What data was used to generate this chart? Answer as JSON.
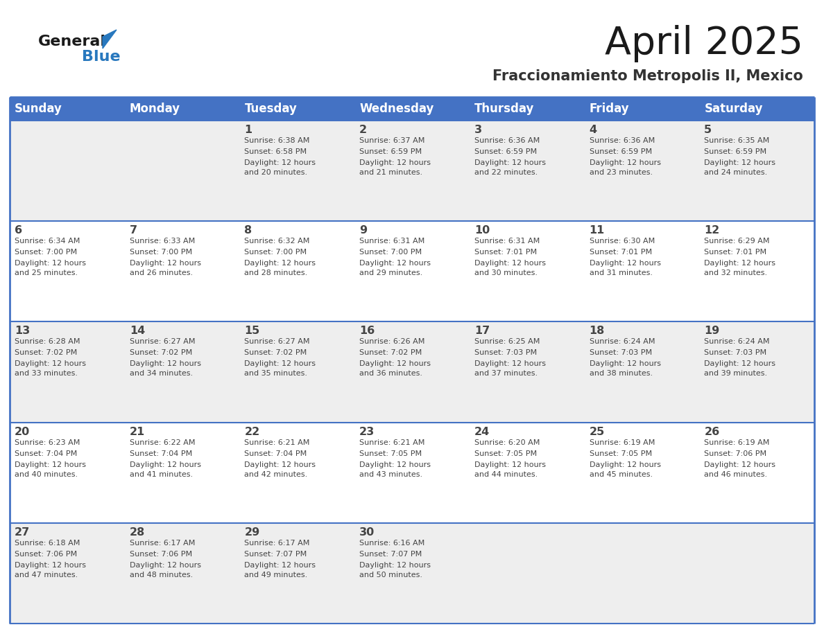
{
  "title": "April 2025",
  "subtitle": "Fraccionamiento Metropolis II, Mexico",
  "days_of_week": [
    "Sunday",
    "Monday",
    "Tuesday",
    "Wednesday",
    "Thursday",
    "Friday",
    "Saturday"
  ],
  "header_bg": "#4472C4",
  "header_text": "#FFFFFF",
  "row_bg_light": "#EEEEEE",
  "row_bg_white": "#FFFFFF",
  "border_color": "#4472C4",
  "cell_text_color": "#444444",
  "title_color": "#1a1a1a",
  "subtitle_color": "#333333",
  "logo_general_color": "#1a1a1a",
  "logo_blue_color": "#2878BE",
  "weeks": [
    [
      {
        "day": "",
        "sunrise": "",
        "sunset": "",
        "daylight": ""
      },
      {
        "day": "",
        "sunrise": "",
        "sunset": "",
        "daylight": ""
      },
      {
        "day": "1",
        "sunrise": "Sunrise: 6:38 AM",
        "sunset": "Sunset: 6:58 PM",
        "daylight": "Daylight: 12 hours\nand 20 minutes."
      },
      {
        "day": "2",
        "sunrise": "Sunrise: 6:37 AM",
        "sunset": "Sunset: 6:59 PM",
        "daylight": "Daylight: 12 hours\nand 21 minutes."
      },
      {
        "day": "3",
        "sunrise": "Sunrise: 6:36 AM",
        "sunset": "Sunset: 6:59 PM",
        "daylight": "Daylight: 12 hours\nand 22 minutes."
      },
      {
        "day": "4",
        "sunrise": "Sunrise: 6:36 AM",
        "sunset": "Sunset: 6:59 PM",
        "daylight": "Daylight: 12 hours\nand 23 minutes."
      },
      {
        "day": "5",
        "sunrise": "Sunrise: 6:35 AM",
        "sunset": "Sunset: 6:59 PM",
        "daylight": "Daylight: 12 hours\nand 24 minutes."
      }
    ],
    [
      {
        "day": "6",
        "sunrise": "Sunrise: 6:34 AM",
        "sunset": "Sunset: 7:00 PM",
        "daylight": "Daylight: 12 hours\nand 25 minutes."
      },
      {
        "day": "7",
        "sunrise": "Sunrise: 6:33 AM",
        "sunset": "Sunset: 7:00 PM",
        "daylight": "Daylight: 12 hours\nand 26 minutes."
      },
      {
        "day": "8",
        "sunrise": "Sunrise: 6:32 AM",
        "sunset": "Sunset: 7:00 PM",
        "daylight": "Daylight: 12 hours\nand 28 minutes."
      },
      {
        "day": "9",
        "sunrise": "Sunrise: 6:31 AM",
        "sunset": "Sunset: 7:00 PM",
        "daylight": "Daylight: 12 hours\nand 29 minutes."
      },
      {
        "day": "10",
        "sunrise": "Sunrise: 6:31 AM",
        "sunset": "Sunset: 7:01 PM",
        "daylight": "Daylight: 12 hours\nand 30 minutes."
      },
      {
        "day": "11",
        "sunrise": "Sunrise: 6:30 AM",
        "sunset": "Sunset: 7:01 PM",
        "daylight": "Daylight: 12 hours\nand 31 minutes."
      },
      {
        "day": "12",
        "sunrise": "Sunrise: 6:29 AM",
        "sunset": "Sunset: 7:01 PM",
        "daylight": "Daylight: 12 hours\nand 32 minutes."
      }
    ],
    [
      {
        "day": "13",
        "sunrise": "Sunrise: 6:28 AM",
        "sunset": "Sunset: 7:02 PM",
        "daylight": "Daylight: 12 hours\nand 33 minutes."
      },
      {
        "day": "14",
        "sunrise": "Sunrise: 6:27 AM",
        "sunset": "Sunset: 7:02 PM",
        "daylight": "Daylight: 12 hours\nand 34 minutes."
      },
      {
        "day": "15",
        "sunrise": "Sunrise: 6:27 AM",
        "sunset": "Sunset: 7:02 PM",
        "daylight": "Daylight: 12 hours\nand 35 minutes."
      },
      {
        "day": "16",
        "sunrise": "Sunrise: 6:26 AM",
        "sunset": "Sunset: 7:02 PM",
        "daylight": "Daylight: 12 hours\nand 36 minutes."
      },
      {
        "day": "17",
        "sunrise": "Sunrise: 6:25 AM",
        "sunset": "Sunset: 7:03 PM",
        "daylight": "Daylight: 12 hours\nand 37 minutes."
      },
      {
        "day": "18",
        "sunrise": "Sunrise: 6:24 AM",
        "sunset": "Sunset: 7:03 PM",
        "daylight": "Daylight: 12 hours\nand 38 minutes."
      },
      {
        "day": "19",
        "sunrise": "Sunrise: 6:24 AM",
        "sunset": "Sunset: 7:03 PM",
        "daylight": "Daylight: 12 hours\nand 39 minutes."
      }
    ],
    [
      {
        "day": "20",
        "sunrise": "Sunrise: 6:23 AM",
        "sunset": "Sunset: 7:04 PM",
        "daylight": "Daylight: 12 hours\nand 40 minutes."
      },
      {
        "day": "21",
        "sunrise": "Sunrise: 6:22 AM",
        "sunset": "Sunset: 7:04 PM",
        "daylight": "Daylight: 12 hours\nand 41 minutes."
      },
      {
        "day": "22",
        "sunrise": "Sunrise: 6:21 AM",
        "sunset": "Sunset: 7:04 PM",
        "daylight": "Daylight: 12 hours\nand 42 minutes."
      },
      {
        "day": "23",
        "sunrise": "Sunrise: 6:21 AM",
        "sunset": "Sunset: 7:05 PM",
        "daylight": "Daylight: 12 hours\nand 43 minutes."
      },
      {
        "day": "24",
        "sunrise": "Sunrise: 6:20 AM",
        "sunset": "Sunset: 7:05 PM",
        "daylight": "Daylight: 12 hours\nand 44 minutes."
      },
      {
        "day": "25",
        "sunrise": "Sunrise: 6:19 AM",
        "sunset": "Sunset: 7:05 PM",
        "daylight": "Daylight: 12 hours\nand 45 minutes."
      },
      {
        "day": "26",
        "sunrise": "Sunrise: 6:19 AM",
        "sunset": "Sunset: 7:06 PM",
        "daylight": "Daylight: 12 hours\nand 46 minutes."
      }
    ],
    [
      {
        "day": "27",
        "sunrise": "Sunrise: 6:18 AM",
        "sunset": "Sunset: 7:06 PM",
        "daylight": "Daylight: 12 hours\nand 47 minutes."
      },
      {
        "day": "28",
        "sunrise": "Sunrise: 6:17 AM",
        "sunset": "Sunset: 7:06 PM",
        "daylight": "Daylight: 12 hours\nand 48 minutes."
      },
      {
        "day": "29",
        "sunrise": "Sunrise: 6:17 AM",
        "sunset": "Sunset: 7:07 PM",
        "daylight": "Daylight: 12 hours\nand 49 minutes."
      },
      {
        "day": "30",
        "sunrise": "Sunrise: 6:16 AM",
        "sunset": "Sunset: 7:07 PM",
        "daylight": "Daylight: 12 hours\nand 50 minutes."
      },
      {
        "day": "",
        "sunrise": "",
        "sunset": "",
        "daylight": ""
      },
      {
        "day": "",
        "sunrise": "",
        "sunset": "",
        "daylight": ""
      },
      {
        "day": "",
        "sunrise": "",
        "sunset": "",
        "daylight": ""
      }
    ]
  ]
}
